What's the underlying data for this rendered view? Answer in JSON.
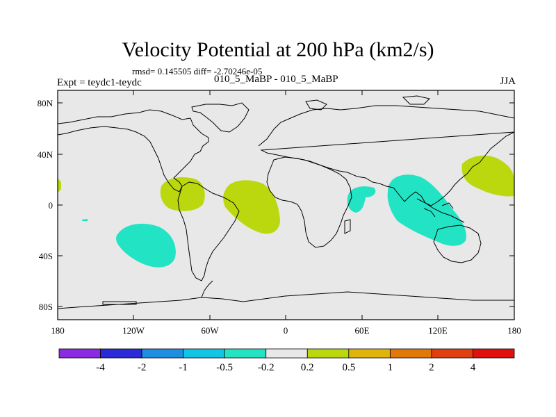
{
  "title": "Velocity Potential at 200 hPa (km2/s)",
  "stats": "rmsd= 0.145505 diff= -2.70246e-05",
  "experiment": "Expt = teydc1-teydc",
  "subtitle": "010_5_MaBP - 010_5_MaBP",
  "season": "JJA",
  "lat_labels": [
    "80N",
    "40N",
    "0",
    "40S",
    "80S"
  ],
  "lon_labels": [
    "180",
    "120W",
    "60W",
    "0",
    "60E",
    "120E",
    "180"
  ],
  "colorbar": {
    "colors": [
      "#8a2be2",
      "#2a2ad8",
      "#1e8ee0",
      "#12c4e6",
      "#22e4c4",
      "#e8e8e8",
      "#bbd80e",
      "#e0b40c",
      "#e0780a",
      "#e04010",
      "#e01010"
    ],
    "labels": [
      "-4",
      "-2",
      "-1",
      "-0.5",
      "-0.2",
      "0.2",
      "0.5",
      "1",
      "2",
      "4"
    ]
  },
  "colors": {
    "background": "#e8e8e8",
    "positive": "#bbd80e",
    "negative": "#22e4c4",
    "coast": "#000000"
  }
}
